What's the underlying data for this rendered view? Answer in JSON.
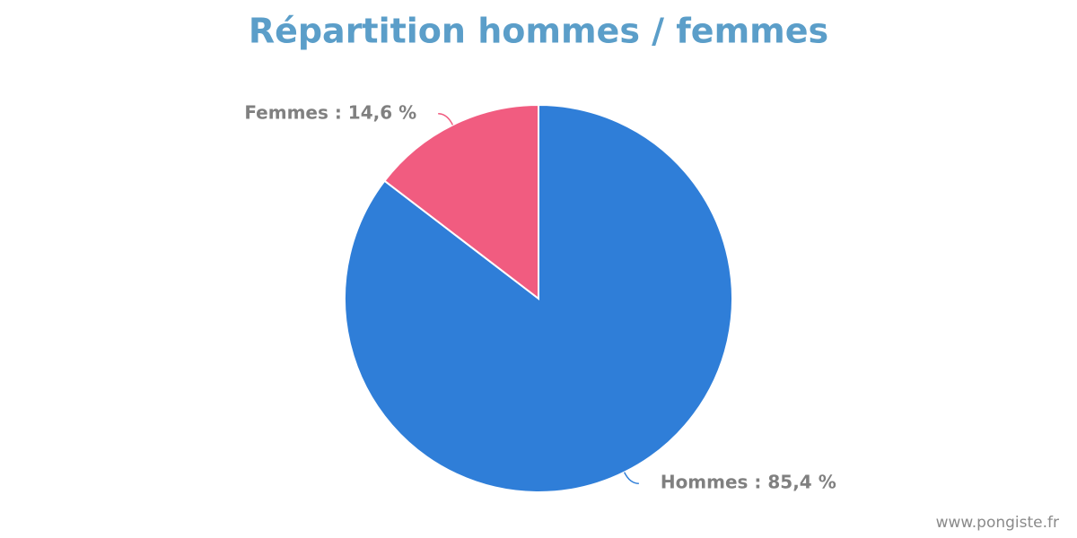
{
  "chart_data": {
    "type": "pie",
    "title": "Répartition hommes / femmes",
    "values": [
      85.4,
      14.6
    ],
    "value_labels": [
      "Hommes : 85,4 %",
      "Femmes : 14,6 %"
    ],
    "colors": [
      "#2f7ed8",
      "#f15c80"
    ],
    "source": "www.pongiste.fr"
  }
}
